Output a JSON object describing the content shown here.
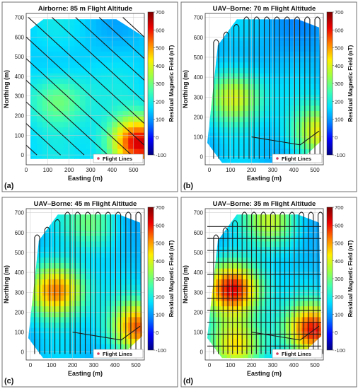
{
  "chart_data": [
    {
      "type": "heatmap",
      "panel_label": "(a)",
      "title": "Airborne: 85 m Flight Altitude",
      "xlabel": "Easting (m)",
      "ylabel": "Northing (m)",
      "x_ticks": [
        0,
        100,
        200,
        300,
        400,
        500
      ],
      "y_ticks": [
        0,
        100,
        200,
        300,
        400,
        500,
        600,
        700
      ],
      "xlim": [
        0,
        550
      ],
      "ylim": [
        -50,
        720
      ],
      "colorbar_label": "Residual Magnetic Field (nT)",
      "colorbar_ticks": [
        -100,
        0,
        100,
        200,
        300,
        400,
        500,
        600,
        700
      ],
      "clim": [
        -100,
        700
      ],
      "legend": "Flight Lines",
      "legend_position": "bottom-right",
      "grid": true,
      "flight_line_pattern": "diagonal",
      "anomalies": [
        {
          "x": 150,
          "y": 280,
          "value": 330
        },
        {
          "x": 520,
          "y": 60,
          "value": 650
        }
      ],
      "background_value": 150
    },
    {
      "type": "heatmap",
      "panel_label": "(b)",
      "title": "UAV–Borne: 70 m Flight Altitude",
      "xlabel": "Easting (m)",
      "ylabel": "Northing (m)",
      "x_ticks": [
        0,
        100,
        200,
        300,
        400,
        500
      ],
      "y_ticks": [
        0,
        100,
        200,
        300,
        400,
        500,
        600,
        700
      ],
      "xlim": [
        -20,
        540
      ],
      "ylim": [
        -40,
        720
      ],
      "colorbar_label": "Residual Magnetic Field (nT)",
      "colorbar_ticks": [
        -100,
        0,
        100,
        200,
        300,
        400,
        500,
        600,
        700
      ],
      "clim": [
        -100,
        700
      ],
      "legend": "Flight Lines",
      "legend_position": "bottom-right",
      "grid": true,
      "flight_line_pattern": "north-south",
      "anomalies": [
        {
          "x": 120,
          "y": 300,
          "value": 430
        },
        {
          "x": 520,
          "y": 120,
          "value": 430
        }
      ],
      "background_value": 120
    },
    {
      "type": "heatmap",
      "panel_label": "(c)",
      "title": "UAV–Borne: 45 m Flight Altitude",
      "xlabel": "Easting (m)",
      "ylabel": "Northing (m)",
      "x_ticks": [
        0,
        100,
        200,
        300,
        400,
        500
      ],
      "y_ticks": [
        0,
        100,
        200,
        300,
        400,
        500,
        600,
        700
      ],
      "xlim": [
        -20,
        540
      ],
      "ylim": [
        -40,
        720
      ],
      "colorbar_label": "Residual Magnetic Field (nT)",
      "colorbar_ticks": [
        -100,
        0,
        100,
        200,
        300,
        400,
        500,
        600,
        700
      ],
      "clim": [
        -100,
        700
      ],
      "legend": "Flight Lines",
      "legend_position": "bottom-right",
      "grid": true,
      "flight_line_pattern": "north-south",
      "anomalies": [
        {
          "x": 120,
          "y": 310,
          "value": 560
        },
        {
          "x": 510,
          "y": 120,
          "value": 560
        },
        {
          "x": 300,
          "y": 650,
          "value": 300
        }
      ],
      "background_value": 120
    },
    {
      "type": "heatmap",
      "panel_label": "(d)",
      "title": "UAV–Borne: 35 m Flight Altitude",
      "xlabel": "Easting (m)",
      "ylabel": "Northing (m)",
      "x_ticks": [
        0,
        100,
        200,
        300,
        400,
        500
      ],
      "y_ticks": [
        0,
        100,
        200,
        300,
        400,
        500,
        600,
        700
      ],
      "xlim": [
        -20,
        540
      ],
      "ylim": [
        -40,
        720
      ],
      "colorbar_label": "Residual Magnetic Field (nT)",
      "colorbar_ticks": [
        -100,
        0,
        100,
        200,
        300,
        400,
        500,
        600,
        700
      ],
      "clim": [
        -100,
        700
      ],
      "legend": "Flight Lines",
      "legend_position": "bottom-right",
      "grid": true,
      "flight_line_pattern": "grid",
      "anomalies": [
        {
          "x": 110,
          "y": 320,
          "value": 650
        },
        {
          "x": 490,
          "y": 110,
          "value": 620
        },
        {
          "x": 300,
          "y": 660,
          "value": 380
        },
        {
          "x": 120,
          "y": 40,
          "value": 400
        }
      ],
      "background_value": 110
    }
  ],
  "colors": {
    "colormap": [
      "#00007f",
      "#0000ff",
      "#0080ff",
      "#00e0ff",
      "#40ffb0",
      "#a0ff40",
      "#ffee00",
      "#ff8000",
      "#ee0000",
      "#7f0000"
    ],
    "flight_line": "#1a1a1a",
    "legend_marker": "#d04060",
    "panel_border": "#707070"
  }
}
